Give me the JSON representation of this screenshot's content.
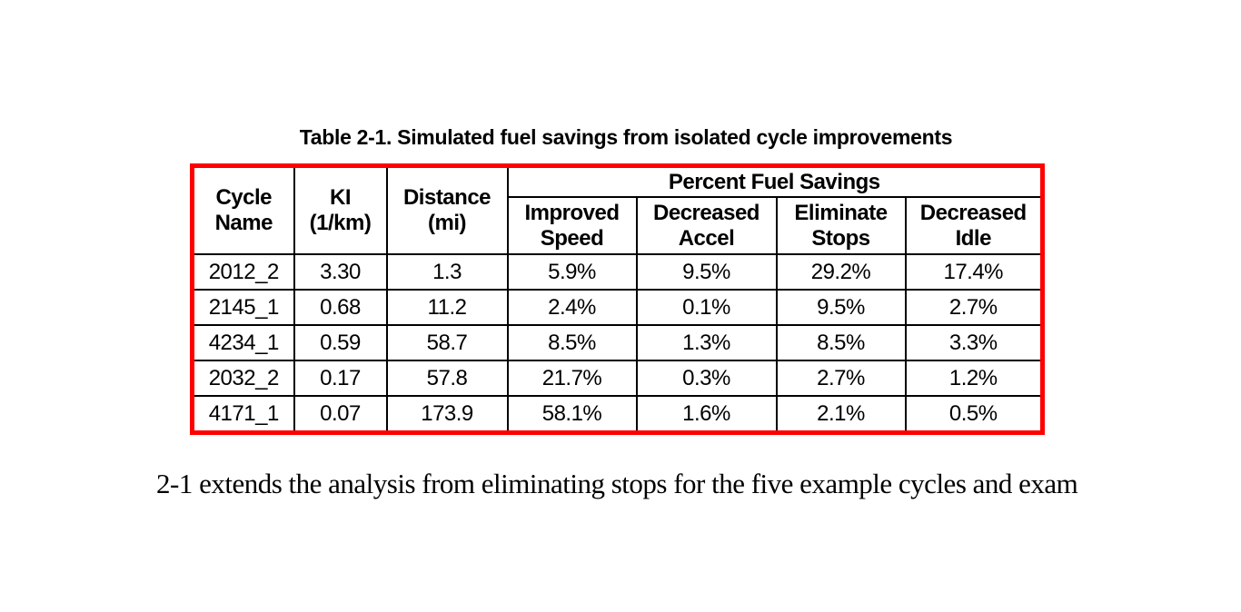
{
  "table": {
    "caption": "Table 2-1. Simulated fuel savings from isolated cycle improvements",
    "border_color": "#ff0000",
    "grid_color": "#000000",
    "group_header": "Percent Fuel Savings",
    "columns": [
      "Cycle\nName",
      "KI\n(1/km)",
      "Distance\n(mi)",
      "Improved\nSpeed",
      "Decreased\nAccel",
      "Eliminate\nStops",
      "Decreased\nIdle"
    ],
    "rows": [
      [
        "2012_2",
        "3.30",
        "1.3",
        "5.9%",
        "9.5%",
        "29.2%",
        "17.4%"
      ],
      [
        "2145_1",
        "0.68",
        "11.2",
        "2.4%",
        "0.1%",
        "9.5%",
        "2.7%"
      ],
      [
        "4234_1",
        "0.59",
        "58.7",
        "8.5%",
        "1.3%",
        "8.5%",
        "3.3%"
      ],
      [
        "2032_2",
        "0.17",
        "57.8",
        "21.7%",
        "0.3%",
        "2.7%",
        "1.2%"
      ],
      [
        "4171_1",
        "0.07",
        "173.9",
        "58.1%",
        "1.6%",
        "2.1%",
        "0.5%"
      ]
    ]
  },
  "body_text": "2-1 extends the analysis from eliminating stops for the five example cycles and exam"
}
